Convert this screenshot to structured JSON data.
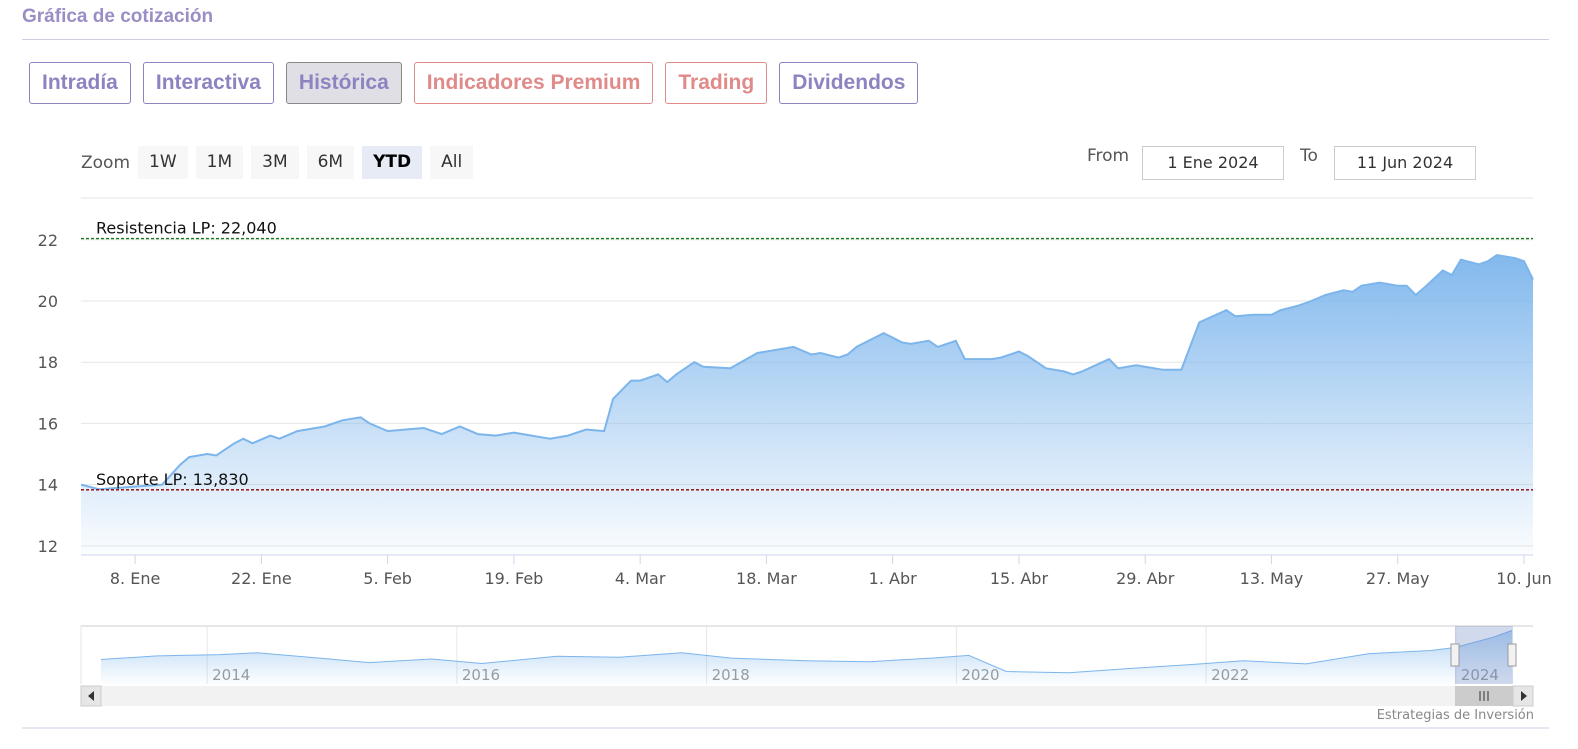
{
  "header": {
    "title": "Gráfica de cotización"
  },
  "tabs": [
    {
      "label": "Intradía",
      "color": "#8c84c0"
    },
    {
      "label": "Interactiva",
      "color": "#8c84c0"
    },
    {
      "label": "Histórica",
      "color": "#8c84c0"
    },
    {
      "label": "Indicadores Premium",
      "color": "#e08a8a"
    },
    {
      "label": "Trading",
      "color": "#e08a8a"
    },
    {
      "label": "Dividendos",
      "color": "#8c84c0"
    }
  ],
  "active_tab": 2,
  "zoom": {
    "label": "Zoom",
    "options": [
      "1W",
      "1M",
      "3M",
      "6M",
      "YTD",
      "All"
    ],
    "active": 4
  },
  "range": {
    "from_label": "From",
    "from": "1 Ene 2024",
    "to_label": "To",
    "to": "11 Jun 2024"
  },
  "chart_data": {
    "type": "area",
    "color": "#7cb5ec",
    "grid": true,
    "x": [
      "2024-01-02",
      "2024-01-04",
      "2024-01-11",
      "2024-01-13",
      "2024-01-14",
      "2024-01-16",
      "2024-01-17",
      "2024-01-19",
      "2024-01-20",
      "2024-01-21",
      "2024-01-23",
      "2024-01-24",
      "2024-01-26",
      "2024-01-29",
      "2024-01-31",
      "2024-02-02",
      "2024-02-03",
      "2024-02-05",
      "2024-02-07",
      "2024-02-09",
      "2024-02-11",
      "2024-02-13",
      "2024-02-15",
      "2024-02-17",
      "2024-02-19",
      "2024-02-23",
      "2024-02-25",
      "2024-02-27",
      "2024-02-29",
      "2024-03-01",
      "2024-03-03",
      "2024-03-04",
      "2024-03-06",
      "2024-03-07",
      "2024-03-08",
      "2024-03-10",
      "2024-03-11",
      "2024-03-14",
      "2024-03-17",
      "2024-03-21",
      "2024-03-23",
      "2024-03-24",
      "2024-03-26",
      "2024-03-27",
      "2024-03-28",
      "2024-03-31",
      "2024-04-02",
      "2024-04-03",
      "2024-04-05",
      "2024-04-06",
      "2024-04-08",
      "2024-04-09",
      "2024-04-12",
      "2024-04-13",
      "2024-04-15",
      "2024-04-16",
      "2024-04-18",
      "2024-04-20",
      "2024-04-21",
      "2024-04-22",
      "2024-04-25",
      "2024-04-26",
      "2024-04-28",
      "2024-05-01",
      "2024-05-03",
      "2024-05-05",
      "2024-05-08",
      "2024-05-09",
      "2024-05-11",
      "2024-05-13",
      "2024-05-14",
      "2024-05-16",
      "2024-05-17",
      "2024-05-19",
      "2024-05-21",
      "2024-05-22",
      "2024-05-23",
      "2024-05-25",
      "2024-05-27",
      "2024-05-28",
      "2024-05-29",
      "2024-05-30",
      "2024-06-01",
      "2024-06-02",
      "2024-06-03",
      "2024-06-05",
      "2024-06-06",
      "2024-06-07",
      "2024-06-09",
      "2024-06-10",
      "2024-06-11"
    ],
    "values": [
      14.0,
      13.85,
      14.0,
      14.65,
      14.9,
      15.0,
      14.95,
      15.35,
      15.5,
      15.35,
      15.6,
      15.5,
      15.75,
      15.9,
      16.1,
      16.2,
      16.0,
      15.75,
      15.8,
      15.85,
      15.65,
      15.9,
      15.65,
      15.6,
      15.7,
      15.5,
      15.6,
      15.8,
      15.75,
      16.8,
      17.4,
      17.4,
      17.6,
      17.35,
      17.6,
      18.0,
      17.85,
      17.8,
      18.3,
      18.5,
      18.25,
      18.3,
      18.15,
      18.25,
      18.5,
      18.95,
      18.65,
      18.6,
      18.7,
      18.5,
      18.7,
      18.1,
      18.1,
      18.15,
      18.35,
      18.2,
      17.8,
      17.7,
      17.6,
      17.7,
      18.1,
      17.8,
      17.9,
      17.75,
      17.75,
      19.3,
      19.7,
      19.5,
      19.55,
      19.55,
      19.7,
      19.85,
      19.95,
      20.2,
      20.35,
      20.3,
      20.5,
      20.6,
      20.5,
      20.5,
      20.2,
      20.45,
      21.0,
      20.85,
      21.35,
      21.2,
      21.3,
      21.5,
      21.4,
      21.3,
      20.7
    ],
    "xlim": [
      "2024-01-02",
      "2024-06-11"
    ],
    "xticks": [
      {
        "value": "2024-01-08",
        "label": "8. Ene"
      },
      {
        "value": "2024-01-22",
        "label": "22. Ene"
      },
      {
        "value": "2024-02-05",
        "label": "5. Feb"
      },
      {
        "value": "2024-02-19",
        "label": "19. Feb"
      },
      {
        "value": "2024-03-04",
        "label": "4. Mar"
      },
      {
        "value": "2024-03-18",
        "label": "18. Mar"
      },
      {
        "value": "2024-04-01",
        "label": "1. Abr"
      },
      {
        "value": "2024-04-15",
        "label": "15. Abr"
      },
      {
        "value": "2024-04-29",
        "label": "29. Abr"
      },
      {
        "value": "2024-05-13",
        "label": "13. May"
      },
      {
        "value": "2024-05-27",
        "label": "27. May"
      },
      {
        "value": "2024-06-10",
        "label": "10. Jun"
      }
    ],
    "ylim": [
      11.7,
      23.3
    ],
    "yticks": [
      12,
      14,
      16,
      18,
      20,
      22
    ],
    "annotations": [
      {
        "value": 22.04,
        "label": "Resistencia LP: 22,040",
        "color": "#1a7a1a"
      },
      {
        "value": 13.83,
        "label": "Soporte LP: 13,830",
        "color": "#8b0000"
      }
    ]
  },
  "navigator": {
    "color": "#7cb5ec",
    "x": [
      2013.15,
      2013.6,
      2014.1,
      2014.4,
      2014.9,
      2015.3,
      2015.8,
      2016.2,
      2016.8,
      2017.3,
      2017.8,
      2018.2,
      2018.8,
      2019.3,
      2019.8,
      2020.1,
      2020.4,
      2020.9,
      2021.4,
      2021.9,
      2022.3,
      2022.8,
      2023.3,
      2023.8,
      2024.0,
      2024.3,
      2024.45
    ],
    "values": [
      14.5,
      15.3,
      15.6,
      16.0,
      14.8,
      13.8,
      14.6,
      13.6,
      15.2,
      15.0,
      16.0,
      14.8,
      14.2,
      14.0,
      14.8,
      15.4,
      11.8,
      11.5,
      12.5,
      13.4,
      14.2,
      13.5,
      15.8,
      16.5,
      17.2,
      19.5,
      21.0
    ],
    "xlim": [
      2013.15,
      2024.45
    ],
    "ylim": [
      9,
      22
    ],
    "xticks": [
      2014,
      2016,
      2018,
      2020,
      2022,
      2024
    ]
  },
  "credit": "Estrategias de Inversión"
}
